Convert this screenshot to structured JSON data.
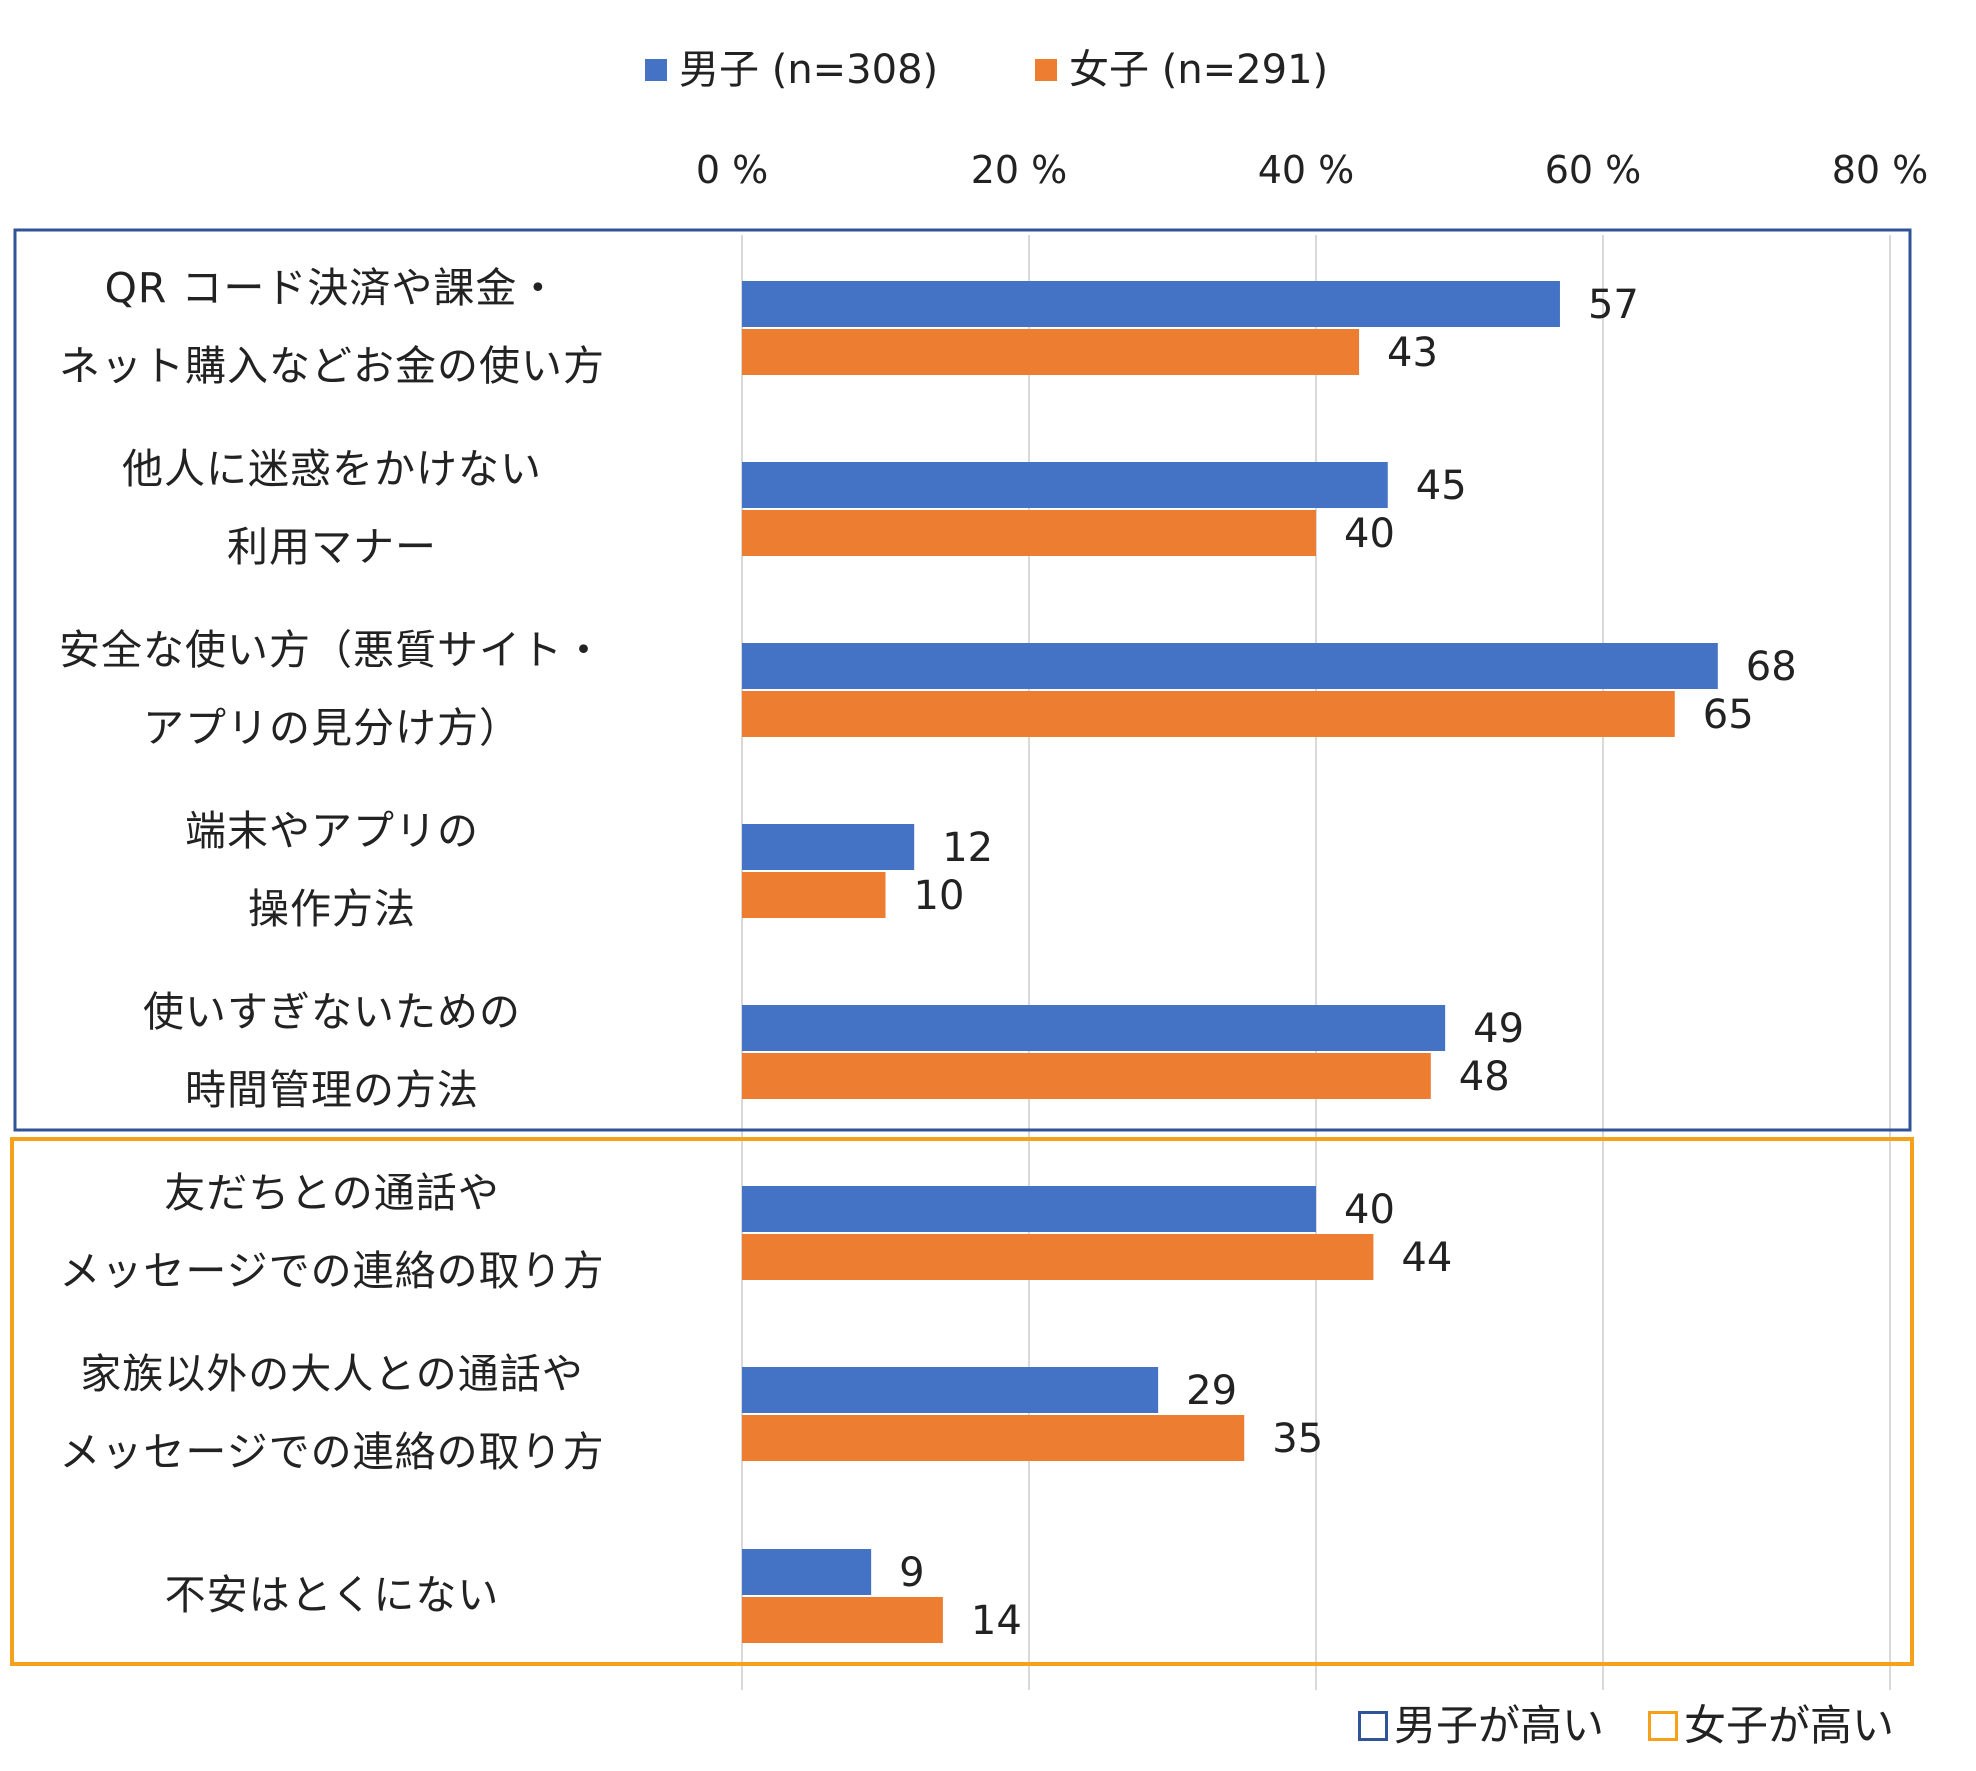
{
  "chart_data": {
    "type": "bar",
    "orientation": "horizontal",
    "title": "",
    "xlabel": "",
    "ylabel": "",
    "xlim": [
      0,
      80
    ],
    "xticks": [
      "0 %",
      "20 %",
      "40 %",
      "60 %",
      "80 %"
    ],
    "grid": true,
    "legend_position": "top",
    "categories": [
      [
        "QR コード決済や課金・",
        "ネット購入などお金の使い方"
      ],
      [
        "他人に迷惑をかけない",
        "利用マナー"
      ],
      [
        "安全な使い方（悪質サイト・",
        "アプリの見分け方）"
      ],
      [
        "端末やアプリの",
        "操作方法"
      ],
      [
        "使いすぎないための",
        "時間管理の方法"
      ],
      [
        "友だちとの通話や",
        "メッセージでの連絡の取り方"
      ],
      [
        "家族以外の大人との通話や",
        "メッセージでの連絡の取り方"
      ],
      [
        "不安はとくにない"
      ]
    ],
    "series": [
      {
        "name": "男子 (n=308)",
        "color": "#4472C4",
        "values": [
          57,
          45,
          68,
          12,
          49,
          40,
          29,
          9
        ]
      },
      {
        "name": "女子 (n=291)",
        "color": "#ED7D31",
        "values": [
          43,
          40,
          65,
          10,
          48,
          44,
          35,
          14
        ]
      }
    ],
    "groups": [
      {
        "note": "男子が高い",
        "color": "#2F5597",
        "categories": [
          0,
          4
        ]
      },
      {
        "note": "女子が高い",
        "color": "#F5A11C",
        "categories": [
          5,
          7
        ]
      }
    ]
  }
}
